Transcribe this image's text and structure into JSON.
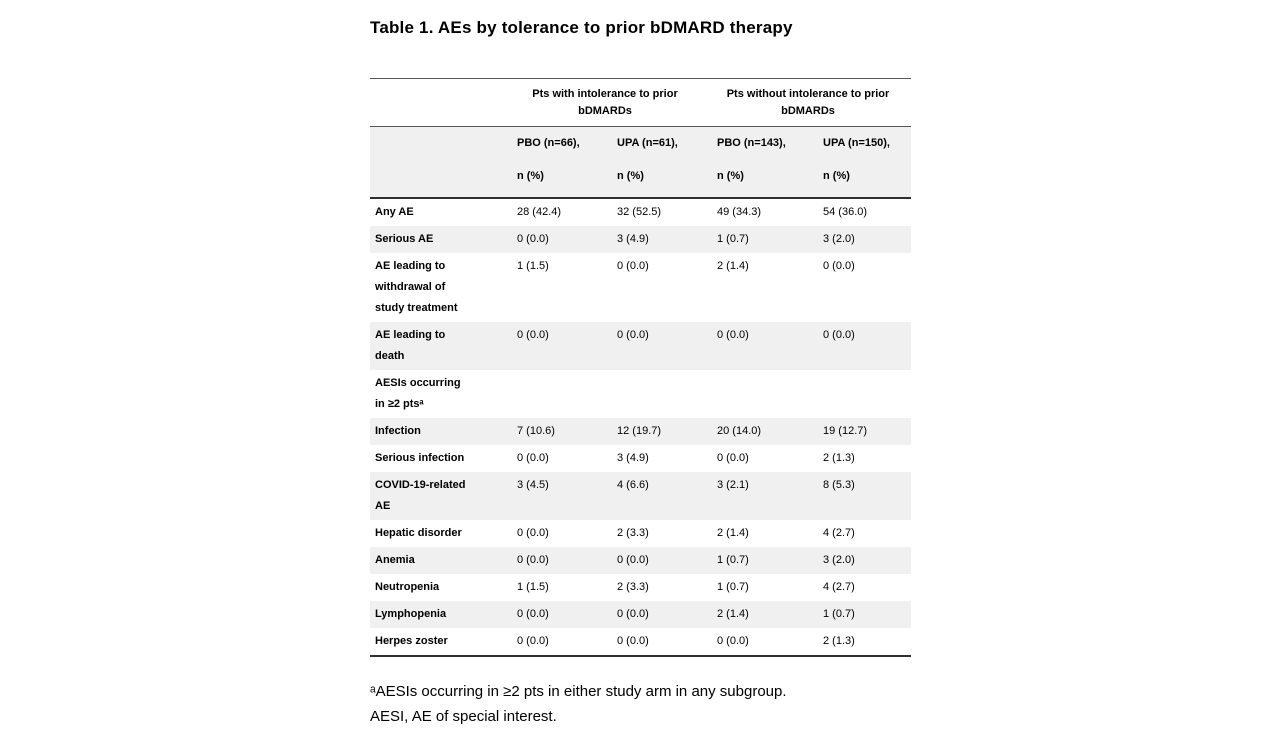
{
  "title": "Table 1. AEs by tolerance to prior bDMARD therapy",
  "table": {
    "group_headers": [
      {
        "line1": "Pts with intolerance to prior",
        "line2": "bDMARDs"
      },
      {
        "line1": "Pts without intolerance to prior",
        "line2": "bDMARDs"
      }
    ],
    "column_headers": [
      {
        "line1": "PBO (n=66),",
        "line2": "n (%)"
      },
      {
        "line1": "UPA (n=61),",
        "line2": "n (%)"
      },
      {
        "line1": "PBO (n=143),",
        "line2": "n (%)"
      },
      {
        "line1": "UPA (n=150),",
        "line2": "n (%)"
      }
    ],
    "rows": [
      {
        "label": "Any AE",
        "values": [
          "28 (42.4)",
          "32 (52.5)",
          "49 (34.3)",
          "54 (36.0)"
        ]
      },
      {
        "label": "Serious AE",
        "values": [
          "0 (0.0)",
          "3 (4.9)",
          "1 (0.7)",
          "3 (2.0)"
        ]
      },
      {
        "label": "AE leading to\nwithdrawal of\nstudy treatment",
        "values": [
          "1 (1.5)",
          "0 (0.0)",
          "2 (1.4)",
          "0 (0.0)"
        ]
      },
      {
        "label": "AE leading to\ndeath",
        "values": [
          "0 (0.0)",
          "0 (0.0)",
          "0 (0.0)",
          "0 (0.0)"
        ]
      },
      {
        "label": "AESIs occurring\nin ≥2 ptsᵃ",
        "values": [
          "",
          "",
          "",
          ""
        ]
      },
      {
        "label": "Infection",
        "values": [
          "7 (10.6)",
          "12 (19.7)",
          "20 (14.0)",
          "19 (12.7)"
        ]
      },
      {
        "label": "Serious infection",
        "values": [
          "0 (0.0)",
          "3 (4.9)",
          "0 (0.0)",
          "2 (1.3)"
        ]
      },
      {
        "label": "COVID-19-related\nAE",
        "values": [
          "3 (4.5)",
          "4 (6.6)",
          "3 (2.1)",
          "8 (5.3)"
        ]
      },
      {
        "label": "Hepatic disorder",
        "values": [
          "0 (0.0)",
          "2 (3.3)",
          "2 (1.4)",
          "4 (2.7)"
        ]
      },
      {
        "label": "Anemia",
        "values": [
          "0 (0.0)",
          "0 (0.0)",
          "1 (0.7)",
          "3 (2.0)"
        ]
      },
      {
        "label": "Neutropenia",
        "values": [
          "1 (1.5)",
          "2 (3.3)",
          "1 (0.7)",
          "4 (2.7)"
        ]
      },
      {
        "label": "Lymphopenia",
        "values": [
          "0 (0.0)",
          "0 (0.0)",
          "2 (1.4)",
          "1 (0.7)"
        ]
      },
      {
        "label": "Herpes zoster",
        "values": [
          "0 (0.0)",
          "0 (0.0)",
          "0 (0.0)",
          "2 (1.3)"
        ]
      }
    ]
  },
  "footnotes": [
    "ᵃAESIs occurring in ≥2 pts in either study arm in any subgroup.",
    "AESI, AE of special interest."
  ],
  "colors": {
    "stripe": "#f0f0f0",
    "border_light": "#555555",
    "border_dark": "#2f2f2f",
    "text": "#000000",
    "background": "#ffffff"
  }
}
